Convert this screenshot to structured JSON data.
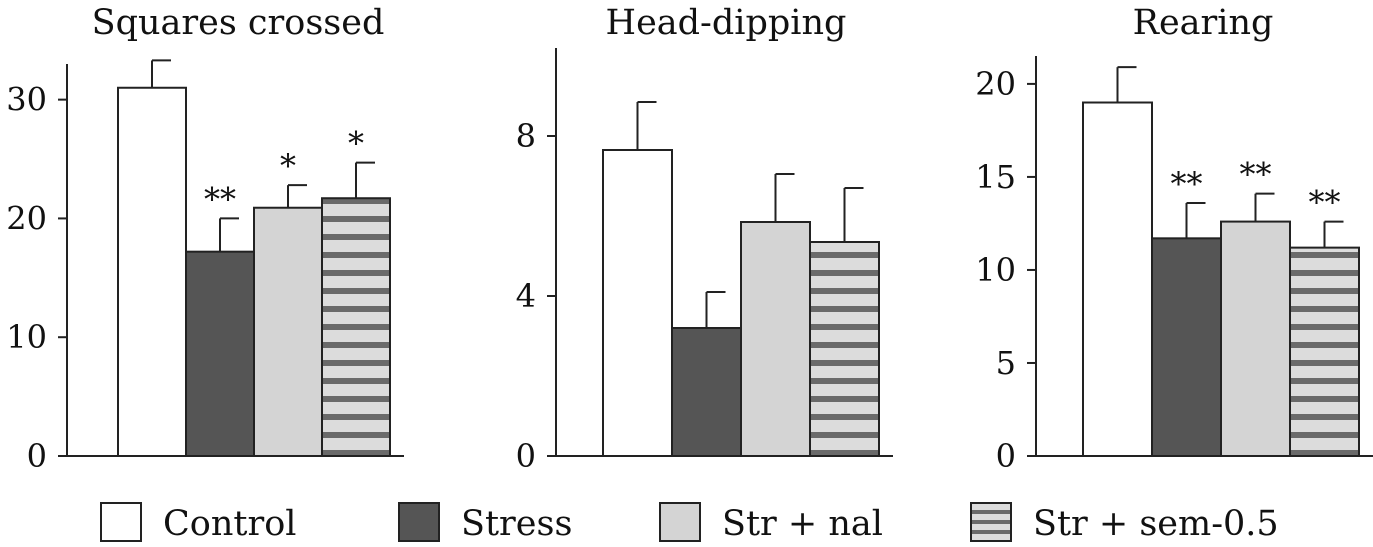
{
  "colors": {
    "control": "#ffffff",
    "stress": "#555555",
    "str_nal": "#d4d4d4",
    "stripe_light": "#dcdcdc",
    "stripe_dark": "#6a6a6a",
    "outline": "#222222"
  },
  "legend": {
    "position": "bottom",
    "items": [
      {
        "label": "Control",
        "pattern": "control"
      },
      {
        "label": "Stress",
        "pattern": "stress"
      },
      {
        "label": "Str + nal",
        "pattern": "str_nal"
      },
      {
        "label": "Str + sem-0.5",
        "pattern": "striped"
      }
    ]
  },
  "chart_data": [
    {
      "type": "bar",
      "title": "Squares crossed",
      "categories": [
        "Control",
        "Stress",
        "Str + nal",
        "Str + sem-0.5"
      ],
      "values": [
        31,
        17.2,
        20.9,
        21.7
      ],
      "errors": [
        2.3,
        2.8,
        1.9,
        3.0
      ],
      "annotations": [
        "",
        "**",
        "*",
        "*"
      ],
      "ylim": [
        0,
        33
      ],
      "yticks": [
        0,
        10,
        20,
        30
      ],
      "grid": false
    },
    {
      "type": "bar",
      "title": "Head-dipping",
      "categories": [
        "Control",
        "Stress",
        "Str + nal",
        "Str + sem-0.5"
      ],
      "values": [
        7.65,
        3.2,
        5.85,
        5.35
      ],
      "errors": [
        1.2,
        0.9,
        1.2,
        1.35
      ],
      "annotations": [
        "",
        "",
        "",
        ""
      ],
      "ylim": [
        0,
        10.2
      ],
      "yticks": [
        0,
        4,
        8
      ],
      "grid": false
    },
    {
      "type": "bar",
      "title": "Rearing",
      "categories": [
        "Control",
        "Stress",
        "Str + nal",
        "Str + sem-0.5"
      ],
      "values": [
        19.0,
        11.7,
        12.6,
        11.2
      ],
      "errors": [
        1.9,
        1.9,
        1.5,
        1.4
      ],
      "annotations": [
        "",
        "**",
        "**",
        "**"
      ],
      "ylim": [
        0,
        21.5
      ],
      "yticks": [
        0,
        5,
        10,
        15,
        20
      ],
      "grid": false
    }
  ]
}
